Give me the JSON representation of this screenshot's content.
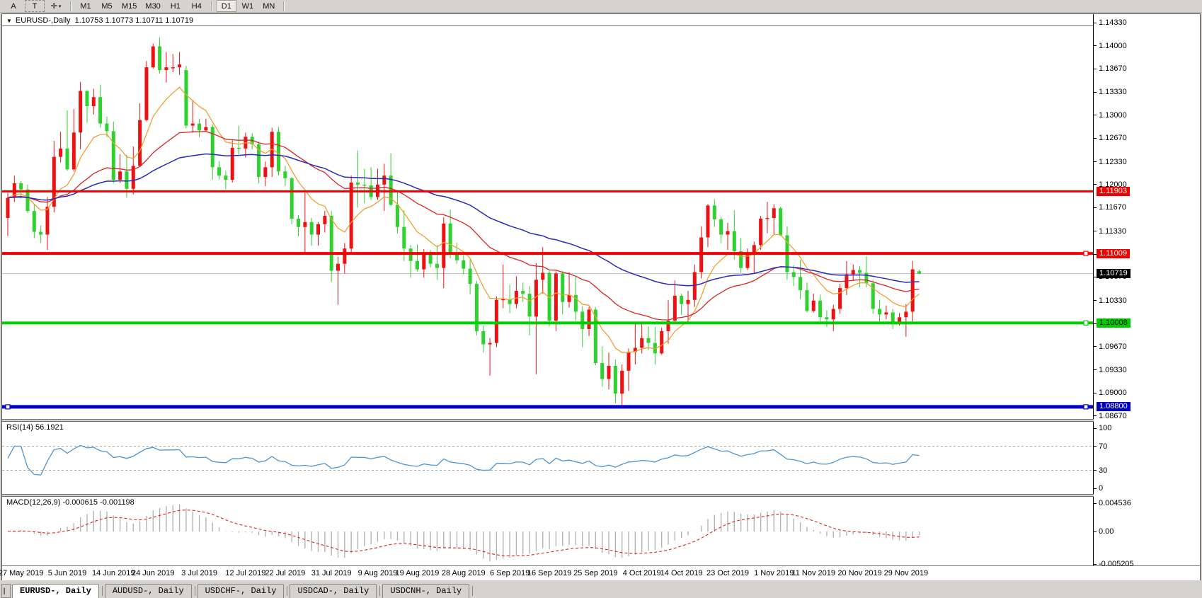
{
  "toolbar": {
    "tools": [
      {
        "name": "cursor-tool",
        "label": "A"
      },
      {
        "name": "text-tool",
        "label": "T",
        "style": "dashed"
      },
      {
        "name": "crosshair-tool",
        "label": "✛",
        "icon": "crosshair-cursor-icon",
        "dropdown": true
      }
    ],
    "timeframes": [
      "M1",
      "M5",
      "M15",
      "M30",
      "H1",
      "H4",
      "D1",
      "W1",
      "MN"
    ],
    "active_timeframe": "D1"
  },
  "window": {
    "title_symbol": "EURUSD-,Daily",
    "title_ohlc": "1.10753 1.10773 1.10711 1.10719"
  },
  "price_axis": {
    "ticks": [
      "1.14330",
      "1.14000",
      "1.13670",
      "1.13330",
      "1.13000",
      "1.12670",
      "1.12330",
      "1.12000",
      "1.11670",
      "1.11330",
      "1.11000",
      "1.10670",
      "1.10330",
      "1.10000",
      "1.09670",
      "1.09330",
      "1.09000",
      "1.08670"
    ]
  },
  "levels": [
    {
      "name": "resistance-upper",
      "label": "1.11903",
      "value": 1.11903,
      "color": "#f20000",
      "text_color": "#ffffff",
      "thickness": 3,
      "handles": []
    },
    {
      "name": "resistance-lower",
      "label": "1.11009",
      "value": 1.11009,
      "color": "#f20000",
      "text_color": "#ffffff",
      "thickness": 4,
      "handles": [
        "right"
      ]
    },
    {
      "name": "support-green",
      "label": "1.10008",
      "value": 1.10008,
      "color": "#00cc00",
      "text_color": "#000000",
      "thickness": 4,
      "handles": [
        "right"
      ]
    },
    {
      "name": "support-blue",
      "label": "1.08800",
      "value": 1.088,
      "color": "#0000c8",
      "text_color": "#ffffff",
      "thickness": 5,
      "handles": [
        "left",
        "right"
      ]
    }
  ],
  "current_price": {
    "label": "1.10719",
    "value": 1.10719,
    "chip_bg": "#000000",
    "chip_text": "#ffffff",
    "line_color": "#bcbcbc"
  },
  "rsi_panel": {
    "label": "RSI(14) 56.1921",
    "ticks": [
      {
        "v": 100,
        "label": "100"
      },
      {
        "v": 70,
        "label": "70",
        "dashed": true
      },
      {
        "v": 30,
        "label": "30",
        "dashed": true
      },
      {
        "v": 0,
        "label": "0"
      }
    ],
    "line_color": "#4a96d2"
  },
  "macd_panel": {
    "label": "MACD(12,26,9) -0.000615 -0.001198",
    "ticks": [
      {
        "v": 0.004536,
        "label": "0.004536"
      },
      {
        "v": 0,
        "label": "0.00"
      },
      {
        "v": -0.005205,
        "label": "-0.005205"
      }
    ],
    "hist_color": "#b3b3b3",
    "signal_color": "#dd2222"
  },
  "date_axis": {
    "ticks": [
      {
        "i": 2,
        "label": "27 May 2019"
      },
      {
        "i": 9,
        "label": "5 Jun 2019"
      },
      {
        "i": 16,
        "label": "14 Jun 2019"
      },
      {
        "i": 22,
        "label": "24 Jun 2019"
      },
      {
        "i": 29,
        "label": "3 Jul 2019"
      },
      {
        "i": 36,
        "label": "12 Jul 2019"
      },
      {
        "i": 42,
        "label": "22 Jul 2019"
      },
      {
        "i": 49,
        "label": "31 Jul 2019"
      },
      {
        "i": 56,
        "label": "9 Aug 2019"
      },
      {
        "i": 62,
        "label": "19 Aug 2019"
      },
      {
        "i": 69,
        "label": "28 Aug 2019"
      },
      {
        "i": 76,
        "label": "6 Sep 2019"
      },
      {
        "i": 82,
        "label": "16 Sep 2019"
      },
      {
        "i": 89,
        "label": "25 Sep 2019"
      },
      {
        "i": 96,
        "label": "4 Oct 2019"
      },
      {
        "i": 102,
        "label": "14 Oct 2019"
      },
      {
        "i": 109,
        "label": "23 Oct 2019"
      },
      {
        "i": 116,
        "label": "1 Nov 2019"
      },
      {
        "i": 122,
        "label": "11 Nov 2019"
      },
      {
        "i": 129,
        "label": "20 Nov 2019"
      },
      {
        "i": 136,
        "label": "29 Nov 2019"
      }
    ]
  },
  "tabs": {
    "scroll_icon": "symbol-list-icon",
    "items": [
      {
        "label": "EURUSD-, Daily",
        "active": true
      },
      {
        "label": "AUDUSD-, Daily",
        "active": false
      },
      {
        "label": "USDCHF-, Daily",
        "active": false
      },
      {
        "label": "USDCAD-, Daily",
        "active": false
      },
      {
        "label": "USDCNH-, Daily",
        "active": false
      }
    ]
  },
  "chart_data": {
    "type": "candlestick",
    "symbol": "EURUSD",
    "timeframe": "Daily",
    "note": "red = bullish, green = bearish (CN convention); columns are [open, high, low, close]",
    "colors": {
      "up_candle": "#ee1111",
      "down_candle": "#2ed22e",
      "ma_fast": "#f0a030",
      "ma_mid": "#dd2222",
      "ma_slow": "#2a2ab8"
    },
    "overlays": {
      "ma_fast_period": 9,
      "ma_mid_period": 30,
      "ma_slow_period": 60,
      "rsi_period": 14,
      "macd": [
        12,
        26,
        9
      ]
    },
    "ylim": [
      1.0867,
      1.1433
    ],
    "candles": [
      [
        1.1152,
        1.1188,
        1.1126,
        1.1181
      ],
      [
        1.1181,
        1.1213,
        1.1175,
        1.1202
      ],
      [
        1.1202,
        1.1205,
        1.118,
        1.1193
      ],
      [
        1.1193,
        1.12,
        1.1159,
        1.1162
      ],
      [
        1.1162,
        1.1172,
        1.1123,
        1.1132
      ],
      [
        1.1132,
        1.1141,
        1.1116,
        1.1128
      ],
      [
        1.1128,
        1.1182,
        1.1106,
        1.1168
      ],
      [
        1.1168,
        1.1263,
        1.116,
        1.124
      ],
      [
        1.124,
        1.1276,
        1.1232,
        1.1252
      ],
      [
        1.1252,
        1.1307,
        1.122,
        1.1222
      ],
      [
        1.1222,
        1.1309,
        1.1219,
        1.1275
      ],
      [
        1.1275,
        1.1348,
        1.1251,
        1.1335
      ],
      [
        1.1335,
        1.1336,
        1.1289,
        1.1313
      ],
      [
        1.1313,
        1.1338,
        1.1301,
        1.1326
      ],
      [
        1.1326,
        1.1344,
        1.1282,
        1.1288
      ],
      [
        1.1288,
        1.1298,
        1.1268,
        1.1277
      ],
      [
        1.1277,
        1.1291,
        1.1202,
        1.1207
      ],
      [
        1.1207,
        1.1244,
        1.1202,
        1.1219
      ],
      [
        1.1219,
        1.1243,
        1.1181,
        1.1194
      ],
      [
        1.1194,
        1.1255,
        1.1186,
        1.1227
      ],
      [
        1.1227,
        1.1317,
        1.1226,
        1.1293
      ],
      [
        1.1293,
        1.1378,
        1.1291,
        1.1369
      ],
      [
        1.1369,
        1.1403,
        1.1367,
        1.1399
      ],
      [
        1.1399,
        1.1412,
        1.136,
        1.1365
      ],
      [
        1.1365,
        1.1391,
        1.1347,
        1.1369
      ],
      [
        1.1369,
        1.1388,
        1.1362,
        1.1369
      ],
      [
        1.1369,
        1.1391,
        1.1358,
        1.1373
      ],
      [
        1.1365,
        1.1371,
        1.1281,
        1.1285
      ],
      [
        1.1285,
        1.1322,
        1.1275,
        1.1288
      ],
      [
        1.1288,
        1.1295,
        1.1268,
        1.1278
      ],
      [
        1.1278,
        1.1295,
        1.1277,
        1.1283
      ],
      [
        1.1283,
        1.1287,
        1.1207,
        1.1225
      ],
      [
        1.1225,
        1.1234,
        1.1207,
        1.1213
      ],
      [
        1.1213,
        1.1219,
        1.1193,
        1.1207
      ],
      [
        1.1207,
        1.1264,
        1.1203,
        1.1253
      ],
      [
        1.1253,
        1.1285,
        1.1243,
        1.1252
      ],
      [
        1.1252,
        1.1275,
        1.1239,
        1.1269
      ],
      [
        1.1269,
        1.1274,
        1.1251,
        1.1258
      ],
      [
        1.1258,
        1.1262,
        1.1202,
        1.1211
      ],
      [
        1.1211,
        1.1233,
        1.1198,
        1.1225
      ],
      [
        1.1225,
        1.1282,
        1.1211,
        1.1276
      ],
      [
        1.1276,
        1.1283,
        1.1213,
        1.1219
      ],
      [
        1.1219,
        1.1227,
        1.1198,
        1.1209
      ],
      [
        1.1209,
        1.1211,
        1.1143,
        1.1151
      ],
      [
        1.1151,
        1.1156,
        1.1126,
        1.1139
      ],
      [
        1.1139,
        1.1188,
        1.1101,
        1.1146
      ],
      [
        1.1146,
        1.1152,
        1.1112,
        1.1128
      ],
      [
        1.1128,
        1.1146,
        1.1112,
        1.1143
      ],
      [
        1.1143,
        1.1162,
        1.1131,
        1.1155
      ],
      [
        1.1155,
        1.1162,
        1.106,
        1.1076
      ],
      [
        1.1076,
        1.1096,
        1.1027,
        1.1086
      ],
      [
        1.1086,
        1.1116,
        1.1072,
        1.1108
      ],
      [
        1.1108,
        1.1213,
        1.1101,
        1.1203
      ],
      [
        1.1203,
        1.1249,
        1.1167,
        1.12
      ],
      [
        1.12,
        1.1223,
        1.1173,
        1.1199
      ],
      [
        1.1199,
        1.1225,
        1.1178,
        1.1182
      ],
      [
        1.1182,
        1.1223,
        1.1178,
        1.12
      ],
      [
        1.12,
        1.123,
        1.1162,
        1.1213
      ],
      [
        1.1213,
        1.1245,
        1.1169,
        1.1171
      ],
      [
        1.1171,
        1.1192,
        1.113,
        1.1139
      ],
      [
        1.1139,
        1.1163,
        1.109,
        1.1108
      ],
      [
        1.1108,
        1.1113,
        1.1066,
        1.109
      ],
      [
        1.109,
        1.1114,
        1.1075,
        1.1078
      ],
      [
        1.1078,
        1.1107,
        1.1066,
        1.11
      ],
      [
        1.11,
        1.1106,
        1.1081,
        1.1086
      ],
      [
        1.1086,
        1.1113,
        1.1063,
        1.108
      ],
      [
        1.108,
        1.1153,
        1.1051,
        1.1144
      ],
      [
        1.1144,
        1.1164,
        1.1094,
        1.1102
      ],
      [
        1.1102,
        1.1116,
        1.1086,
        1.1091
      ],
      [
        1.1091,
        1.1098,
        1.1071,
        1.1079
      ],
      [
        1.1079,
        1.1094,
        1.1042,
        1.1057
      ],
      [
        1.1057,
        1.1061,
        1.0983,
        1.0989
      ],
      [
        1.0989,
        1.0997,
        1.0958,
        1.097
      ],
      [
        1.097,
        1.0979,
        1.0925,
        1.0972
      ],
      [
        1.0972,
        1.1039,
        1.0966,
        1.1034
      ],
      [
        1.1034,
        1.1085,
        1.1022,
        1.1035
      ],
      [
        1.1035,
        1.1056,
        1.1015,
        1.1028
      ],
      [
        1.1028,
        1.1068,
        1.1022,
        1.1047
      ],
      [
        1.1047,
        1.1059,
        1.1031,
        1.1043
      ],
      [
        1.1043,
        1.1054,
        1.0983,
        1.101
      ],
      [
        1.101,
        1.1087,
        1.0927,
        1.1063
      ],
      [
        1.1063,
        1.111,
        1.1043,
        1.1073
      ],
      [
        1.1073,
        1.1076,
        1.0996,
        1.1004
      ],
      [
        1.1004,
        1.1075,
        1.0989,
        1.1072
      ],
      [
        1.1072,
        1.1076,
        1.1013,
        1.1031
      ],
      [
        1.1031,
        1.1074,
        1.1023,
        1.1041
      ],
      [
        1.1041,
        1.1068,
        1.1004,
        1.1017
      ],
      [
        1.1017,
        1.1025,
        1.0966,
        1.0992
      ],
      [
        1.0992,
        1.1024,
        1.0982,
        1.102
      ],
      [
        1.102,
        1.1024,
        1.094,
        1.0943
      ],
      [
        1.0943,
        1.0967,
        1.0909,
        1.092
      ],
      [
        1.092,
        1.0958,
        1.0905,
        1.0939
      ],
      [
        1.0939,
        1.0948,
        1.0885,
        1.0899
      ],
      [
        1.0899,
        1.0941,
        1.0879,
        1.0932
      ],
      [
        1.0932,
        1.0964,
        1.0903,
        1.0959
      ],
      [
        1.0959,
        1.0999,
        1.0941,
        1.0965
      ],
      [
        1.0965,
        1.0999,
        1.0957,
        1.0979
      ],
      [
        1.0979,
        1.0996,
        1.0962,
        1.0972
      ],
      [
        1.0972,
        1.0995,
        1.0941,
        1.0957
      ],
      [
        1.0957,
        1.0994,
        1.0955,
        1.0989
      ],
      [
        1.0989,
        1.1034,
        1.0971,
        1.1004
      ],
      [
        1.1004,
        1.1062,
        1.1002,
        1.104
      ],
      [
        1.104,
        1.1043,
        1.1012,
        1.1028
      ],
      [
        1.1028,
        1.1047,
        1.1001,
        1.1034
      ],
      [
        1.1034,
        1.1085,
        1.1024,
        1.1074
      ],
      [
        1.1074,
        1.114,
        1.1065,
        1.1124
      ],
      [
        1.1124,
        1.1172,
        1.111,
        1.117
      ],
      [
        1.117,
        1.1179,
        1.1139,
        1.115
      ],
      [
        1.115,
        1.1154,
        1.1115,
        1.1128
      ],
      [
        1.1128,
        1.1145,
        1.1106,
        1.1133
      ],
      [
        1.1133,
        1.1163,
        1.1092,
        1.1104
      ],
      [
        1.1104,
        1.1123,
        1.1073,
        1.108
      ],
      [
        1.108,
        1.1108,
        1.1077,
        1.1099
      ],
      [
        1.1099,
        1.1118,
        1.1073,
        1.1113
      ],
      [
        1.1113,
        1.1155,
        1.1106,
        1.1151
      ],
      [
        1.1151,
        1.1175,
        1.113,
        1.1152
      ],
      [
        1.1152,
        1.1172,
        1.1128,
        1.1166
      ],
      [
        1.1166,
        1.1168,
        1.1126,
        1.1127
      ],
      [
        1.1127,
        1.114,
        1.1063,
        1.1074
      ],
      [
        1.1074,
        1.1084,
        1.1054,
        1.1067
      ],
      [
        1.1067,
        1.1092,
        1.1035,
        1.1048
      ],
      [
        1.1048,
        1.1059,
        1.1016,
        1.1018
      ],
      [
        1.1018,
        1.1043,
        1.1016,
        1.1033
      ],
      [
        1.1033,
        1.1042,
        1.1002,
        1.1009
      ],
      [
        1.1009,
        1.1019,
        1.0995,
        1.1006
      ],
      [
        1.1006,
        1.1027,
        1.0989,
        1.1021
      ],
      [
        1.1021,
        1.1057,
        1.1014,
        1.1051
      ],
      [
        1.1051,
        1.109,
        1.1041,
        1.1071
      ],
      [
        1.1071,
        1.1085,
        1.1062,
        1.1077
      ],
      [
        1.1077,
        1.1083,
        1.1052,
        1.1073
      ],
      [
        1.1073,
        1.1097,
        1.1052,
        1.1058
      ],
      [
        1.1058,
        1.1063,
        1.1014,
        1.1021
      ],
      [
        1.1021,
        1.1034,
        1.1003,
        1.1013
      ],
      [
        1.1013,
        1.1026,
        1.1006,
        1.1016
      ],
      [
        1.1016,
        1.1021,
        1.0992,
        1.1
      ],
      [
        1.1,
        1.1015,
        1.0997,
        1.1009
      ],
      [
        1.1009,
        1.1028,
        1.0981,
        1.1017
      ],
      [
        1.1017,
        1.109,
        1.1003,
        1.1078
      ],
      [
        1.10753,
        1.10773,
        1.10711,
        1.10719
      ]
    ]
  }
}
